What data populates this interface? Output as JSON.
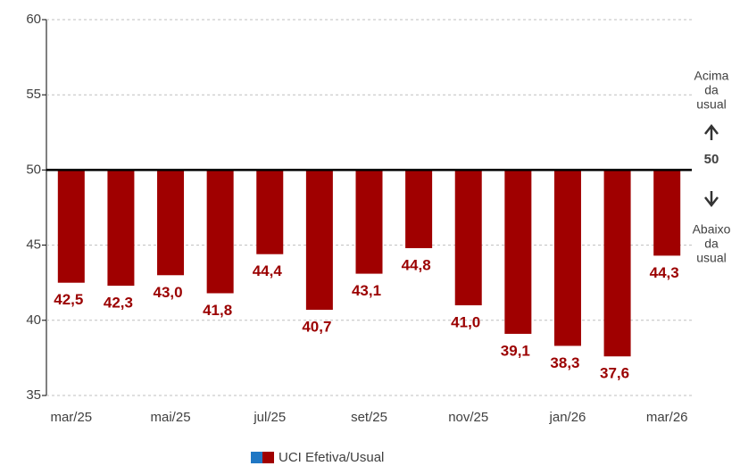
{
  "chart_data": {
    "type": "bar",
    "categories": [
      "mar/25",
      null,
      "mai/25",
      null,
      "jul/25",
      null,
      "set/25",
      null,
      "nov/25",
      null,
      "jan/26",
      null,
      "mar/26"
    ],
    "series": [
      {
        "name": "UCI Efetiva/Usual",
        "color": "#a00000",
        "values": [
          42.5,
          42.3,
          43.0,
          41.8,
          44.4,
          40.7,
          43.1,
          44.8,
          41.0,
          39.1,
          38.3,
          37.6,
          44.3
        ],
        "value_labels": [
          "42,5",
          "42,3",
          "43,0",
          "41,8",
          "44,4",
          "40,7",
          "43,1",
          "44,8",
          "41,0",
          "39,1",
          "38,3",
          "37,6",
          "44,3"
        ]
      }
    ],
    "baseline": 50,
    "annotation_above": [
      "Acima",
      "da",
      "usual"
    ],
    "annotation_below": [
      "Abaixo",
      "da",
      "usual"
    ],
    "ylim": [
      35,
      60
    ],
    "yticks": [
      35,
      40,
      45,
      50,
      55,
      60
    ],
    "grid": true
  }
}
